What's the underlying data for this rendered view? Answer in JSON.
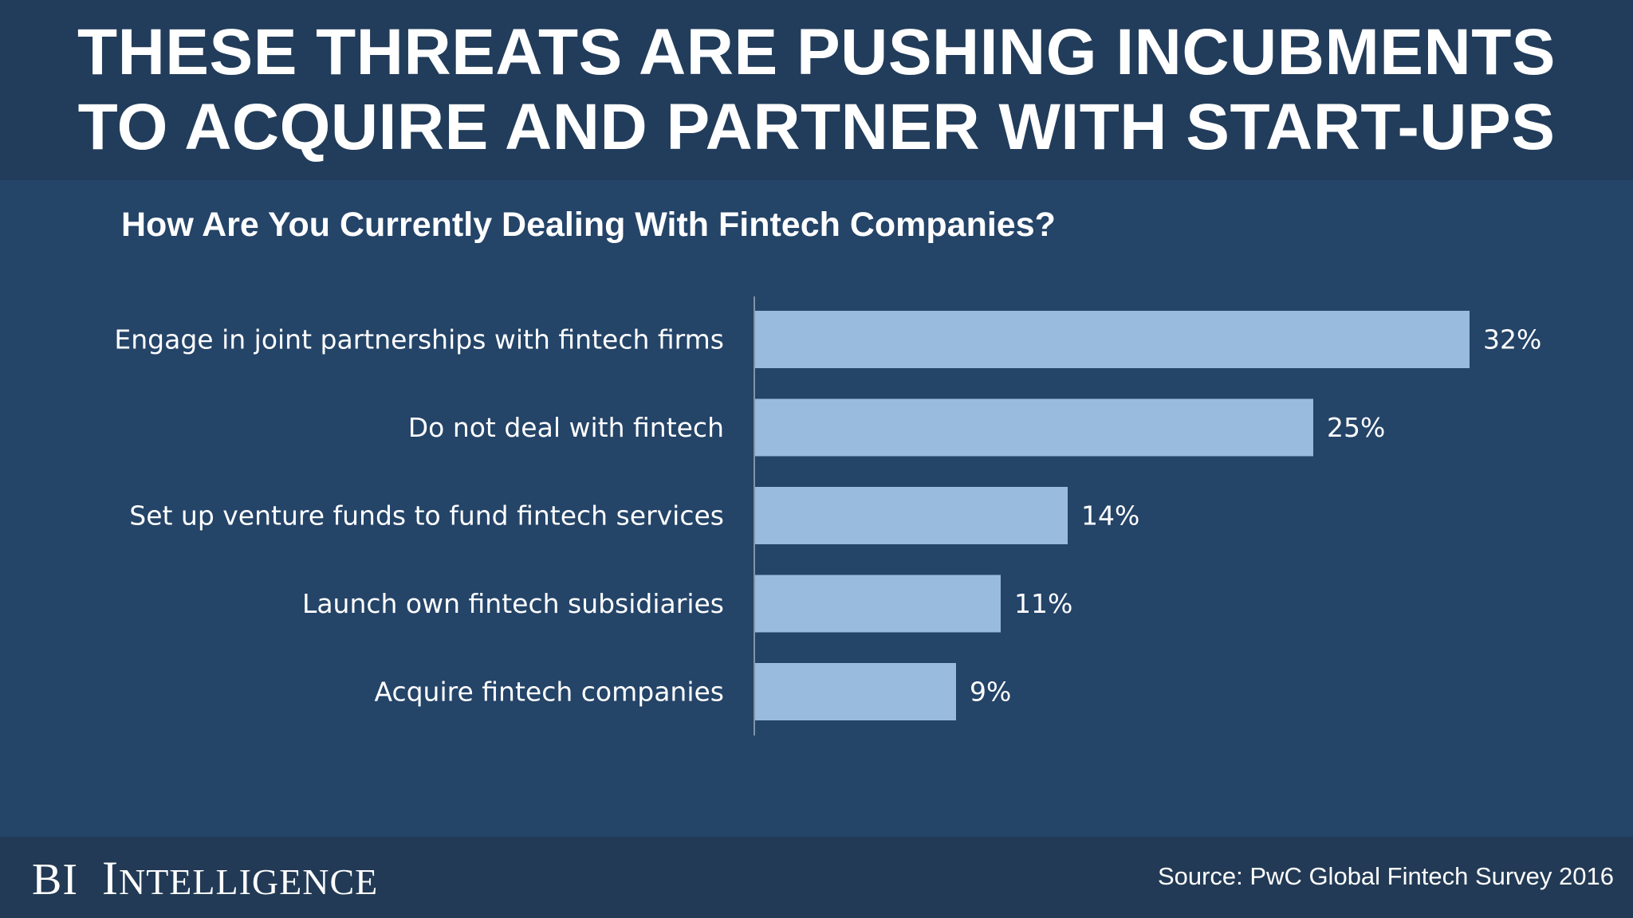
{
  "header": {
    "title_line1": "THESE THREATS ARE PUSHING INCUBMENTS",
    "title_line2": "TO ACQUIRE AND PARTNER WITH START-UPS"
  },
  "colors": {
    "background": "#244468",
    "header_band": "#223d5b",
    "footer_band": "#223a55",
    "bar": "#98bbde",
    "text": "#ffffff",
    "axis": "#7f93a8"
  },
  "chart_data": {
    "type": "bar",
    "orientation": "horizontal",
    "title": "How Are You Currently Dealing With Fintech Companies?",
    "categories": [
      "Engage in joint partnerships with fintech firms",
      "Do not deal with fintech",
      "Set up venture funds to fund fintech services",
      "Launch own fintech subsidiaries",
      "Acquire fintech companies"
    ],
    "values": [
      32,
      25,
      14,
      11,
      9
    ],
    "value_labels": [
      "32%",
      "25%",
      "14%",
      "11%",
      "9%"
    ],
    "unit": "%",
    "xlim": [
      0,
      32
    ],
    "grid": false,
    "legend": "none"
  },
  "footer": {
    "brand_bi": "BI",
    "brand_initial": "I",
    "brand_rest": "NTELLIGENCE",
    "source": "Source: PwC Global Fintech Survey 2016"
  }
}
